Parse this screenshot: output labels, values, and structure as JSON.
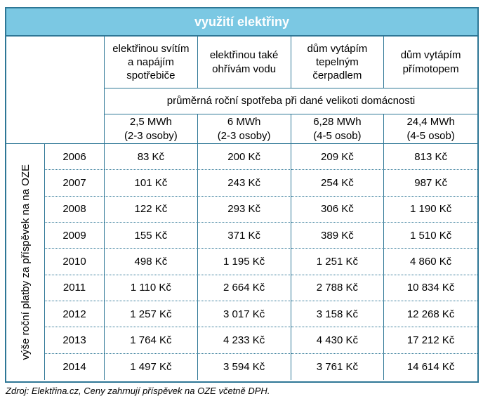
{
  "title": "využití elektřiny",
  "table": {
    "row_axis_label": "výše roční platby za příspěvek na na OZE",
    "usage_headers": [
      "elektřinou svítím a napájím spotřebiče",
      "elektřinou také ohřívám vodu",
      "dům vytápím tepelným čerpadlem",
      "dům vytápím přímotopem"
    ],
    "consumption_banner": "průměrná roční spotřeba při dané velikoti domácnosti",
    "consumption_levels": [
      {
        "mwh": "2,5 MWh",
        "household": "(2-3 osoby)"
      },
      {
        "mwh": "6 MWh",
        "household": "(2-3 osoby)"
      },
      {
        "mwh": "6,28 MWh",
        "household": "(4-5 osob)"
      },
      {
        "mwh": "24,4 MWh",
        "household": "(4-5 osob)"
      }
    ],
    "rows": [
      {
        "year": "2006",
        "values": [
          "83 Kč",
          "200 Kč",
          "209 Kč",
          "813 Kč"
        ]
      },
      {
        "year": "2007",
        "values": [
          "101 Kč",
          "243 Kč",
          "254 Kč",
          "987 Kč"
        ]
      },
      {
        "year": "2008",
        "values": [
          "122 Kč",
          "293 Kč",
          "306 Kč",
          "1 190 Kč"
        ]
      },
      {
        "year": "2009",
        "values": [
          "155 Kč",
          "371 Kč",
          "389 Kč",
          "1 510 Kč"
        ]
      },
      {
        "year": "2010",
        "values": [
          "498 Kč",
          "1 195 Kč",
          "1 251 Kč",
          "4 860 Kč"
        ]
      },
      {
        "year": "2011",
        "values": [
          "1 110 Kč",
          "2 664 Kč",
          "2 788 Kč",
          "10 834 Kč"
        ]
      },
      {
        "year": "2012",
        "values": [
          "1 257 Kč",
          "3 017 Kč",
          "3 158 Kč",
          "12 268 Kč"
        ]
      },
      {
        "year": "2013",
        "values": [
          "1 764 Kč",
          "4 233 Kč",
          "4 430 Kč",
          "17 212 Kč"
        ]
      },
      {
        "year": "2014",
        "values": [
          "1 497 Kč",
          "3 594 Kč",
          "3 761 Kč",
          "14 614 Kč"
        ]
      }
    ]
  },
  "footer": {
    "source_note": "Zdroj: Elektřina.cz, Ceny zahrnují příspěvek na OZE včetně DPH."
  },
  "colors": {
    "title_band_fill": "#7bc8e3",
    "title_text": "#ffffff",
    "grid_border": "#2e7796",
    "body_text": "#000000"
  },
  "chart_data": {
    "type": "table",
    "title": "využití elektřiny",
    "row_axis_label": "výše roční platby za příspěvek na na OZE",
    "column_headers": [
      "elektřinou svítím a napájím spotřebiče",
      "elektřinou také ohřívám vodu",
      "dům vytápím tepelným čerpadlem",
      "dům vytápím přímotopem"
    ],
    "consumption_banner": "průměrná roční spotřeba při dané velikoti domácnosti",
    "consumption_per_column": [
      "2,5 MWh (2-3 osoby)",
      "6 MWh (2-3 osoby)",
      "6,28 MWh (4-5 osob)",
      "24,4 MWh (4-5 osob)"
    ],
    "years": [
      2006,
      2007,
      2008,
      2009,
      2010,
      2011,
      2012,
      2013,
      2014
    ],
    "values_kc": [
      [
        83,
        200,
        209,
        813
      ],
      [
        101,
        243,
        254,
        987
      ],
      [
        122,
        293,
        306,
        1190
      ],
      [
        155,
        371,
        389,
        1510
      ],
      [
        498,
        1195,
        1251,
        4860
      ],
      [
        1110,
        2664,
        2788,
        10834
      ],
      [
        1257,
        3017,
        3158,
        12268
      ],
      [
        1764,
        4233,
        4430,
        17212
      ],
      [
        1497,
        3594,
        3761,
        14614
      ]
    ],
    "unit": "Kč",
    "source": "Zdroj: Elektřina.cz, Ceny zahrnují příspěvek na OZE včetně DPH."
  }
}
